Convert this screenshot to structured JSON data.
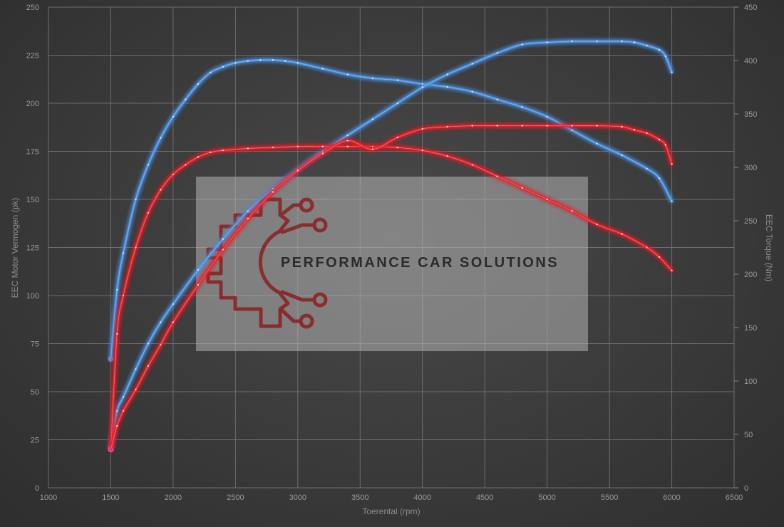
{
  "chart_data": {
    "type": "line",
    "title": "",
    "xlabel": "Toerental (rpm)",
    "ylabel_left": "EEC Motor Vermogen (pk)",
    "ylabel_right": "EEC Torque (Nm)",
    "xlim": [
      1000,
      6500
    ],
    "ylim_left": [
      0,
      250
    ],
    "ylim_right": [
      0,
      450
    ],
    "x_ticks": [
      "1000",
      "1500",
      "2000",
      "2500",
      "3000",
      "3500",
      "4000",
      "4500",
      "5000",
      "5500",
      "6000",
      "6500"
    ],
    "y_left_ticks": [
      "0",
      "25",
      "50",
      "75",
      "100",
      "125",
      "150",
      "175",
      "200",
      "225",
      "250"
    ],
    "y_right_ticks": [
      "0",
      "50",
      "100",
      "150",
      "200",
      "250",
      "300",
      "350",
      "400",
      "450"
    ],
    "grid": true,
    "colors": {
      "tuned": "#4a8fe0",
      "stock": "#e8222a",
      "point": "#ffffff"
    },
    "series": [
      {
        "id": "power-tuned",
        "axis": "left",
        "color": "tuned",
        "x": [
          1500,
          1550,
          1600,
          1700,
          1800,
          1900,
          2000,
          2100,
          2200,
          2300,
          2400,
          2500,
          2600,
          2700,
          2800,
          2900,
          3000,
          3200,
          3400,
          3600,
          3800,
          4000,
          4200,
          4400,
          4600,
          4800,
          5000,
          5200,
          5400,
          5600,
          5800,
          5900,
          6000
        ],
        "y": [
          67,
          103,
          122,
          150,
          168,
          182,
          193,
          202,
          210,
          216,
          219,
          221,
          222,
          222.5,
          222.5,
          222,
          221,
          218,
          215,
          213,
          212,
          210,
          208.5,
          206,
          202,
          198,
          193,
          186,
          179,
          173,
          166,
          161,
          149
        ]
      },
      {
        "id": "torque-tuned",
        "axis": "right",
        "color": "tuned",
        "x": [
          1500,
          1550,
          1600,
          1700,
          1800,
          1900,
          2000,
          2200,
          2400,
          2600,
          2800,
          3000,
          3200,
          3400,
          3600,
          3800,
          4000,
          4200,
          4400,
          4600,
          4800,
          5000,
          5200,
          5400,
          5600,
          5700,
          5800,
          5900,
          5950,
          6000
        ],
        "y": [
          38,
          72,
          85,
          111,
          135,
          155,
          172,
          204,
          233,
          259,
          280,
          298,
          315,
          330,
          345,
          360,
          375,
          387,
          397,
          407,
          415,
          417,
          418,
          418,
          418,
          417,
          414,
          410,
          404,
          389
        ]
      },
      {
        "id": "power-stock",
        "axis": "left",
        "color": "stock",
        "x": [
          1500,
          1550,
          1600,
          1700,
          1800,
          1900,
          2000,
          2100,
          2200,
          2300,
          2400,
          2600,
          2800,
          3000,
          3200,
          3400,
          3600,
          3800,
          4000,
          4200,
          4400,
          4600,
          4800,
          5000,
          5200,
          5400,
          5600,
          5800,
          5900,
          6000
        ],
        "y": [
          20,
          80,
          100,
          125,
          143,
          155,
          163,
          168,
          172,
          174.5,
          175.5,
          176.5,
          177,
          177.5,
          177.5,
          177.5,
          177.5,
          177,
          175.5,
          172.5,
          168,
          162,
          156,
          150,
          144,
          137,
          132,
          125,
          120,
          113
        ]
      },
      {
        "id": "torque-stock",
        "axis": "right",
        "color": "stock",
        "x": [
          1500,
          1550,
          1600,
          1700,
          1800,
          1900,
          2000,
          2200,
          2400,
          2600,
          2800,
          3000,
          3200,
          3400,
          3600,
          3800,
          4000,
          4200,
          4400,
          4600,
          4800,
          5000,
          5200,
          5400,
          5600,
          5700,
          5800,
          5900,
          5950,
          6000
        ],
        "y": [
          36,
          58,
          72,
          92,
          114,
          134,
          155,
          190,
          223,
          252,
          277,
          297,
          313,
          325,
          317,
          328,
          336,
          338,
          339,
          339,
          339,
          339,
          339,
          339,
          338,
          335,
          332,
          326,
          321,
          303
        ]
      }
    ]
  },
  "watermark": {
    "text": "PERFORMANCE CAR SOLUTIONS",
    "logo_color": "#8a2424"
  }
}
